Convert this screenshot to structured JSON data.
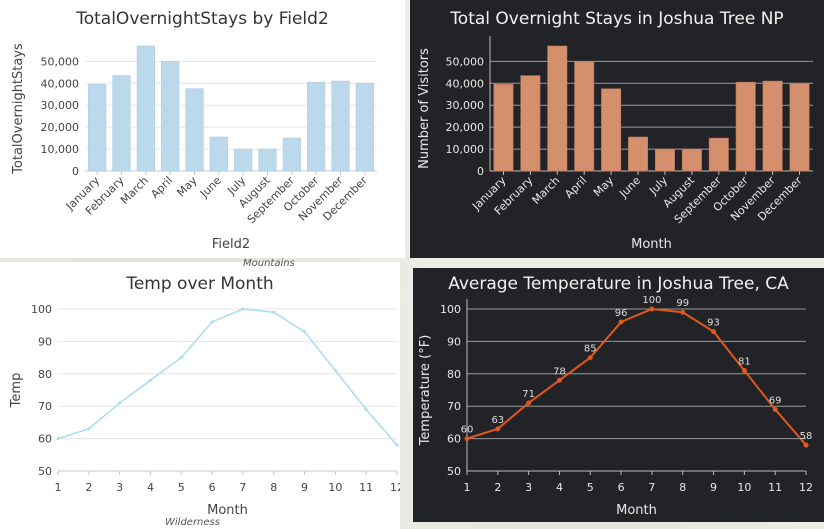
{
  "map_labels": [
    "Mountains",
    "Wilderness"
  ],
  "chart_data": [
    {
      "type": "bar",
      "theme": "light",
      "title": "TotalOvernightStays by Field2",
      "xlabel": "Field2",
      "ylabel": "TotalOvernightStays",
      "categories": [
        "January",
        "February",
        "March",
        "April",
        "May",
        "June",
        "July",
        "August",
        "September",
        "October",
        "November",
        "December"
      ],
      "values": [
        39500,
        43500,
        57000,
        50000,
        37500,
        15500,
        10000,
        10000,
        15000,
        40500,
        41000,
        40000
      ],
      "ylim": [
        0,
        57000
      ],
      "yticks": [
        0,
        10000,
        20000,
        30000,
        40000,
        50000
      ],
      "ytick_labels": [
        "0",
        "10,000",
        "20,000",
        "30,000",
        "40,000",
        "50,000"
      ],
      "grid": true,
      "color": "#bcd9ec"
    },
    {
      "type": "bar",
      "theme": "dark",
      "title": "Total Overnight Stays in Joshua Tree NP",
      "xlabel": "Month",
      "ylabel": "Number of Visitors",
      "categories": [
        "January",
        "February",
        "March",
        "April",
        "May",
        "June",
        "July",
        "August",
        "September",
        "October",
        "November",
        "December"
      ],
      "values": [
        39500,
        43500,
        57000,
        50000,
        37500,
        15500,
        10000,
        10000,
        15000,
        40500,
        41000,
        40000
      ],
      "ylim": [
        0,
        57000
      ],
      "yticks": [
        0,
        10000,
        20000,
        30000,
        40000,
        50000
      ],
      "ytick_labels": [
        "0",
        "10,000",
        "20,000",
        "30,000",
        "40,000",
        "50,000"
      ],
      "grid": true,
      "color": "#d4906c"
    },
    {
      "type": "line",
      "theme": "light",
      "title": "Temp over Month",
      "xlabel": "Month",
      "ylabel": "Temp",
      "x": [
        1,
        2,
        3,
        4,
        5,
        6,
        7,
        8,
        9,
        10,
        11,
        12
      ],
      "values": [
        60,
        63,
        71,
        78,
        85,
        96,
        100,
        99,
        93,
        81,
        69,
        58
      ],
      "ylim": [
        50,
        100
      ],
      "yticks": [
        50,
        60,
        70,
        80,
        90,
        100
      ],
      "ytick_labels": [
        "50",
        "60",
        "70",
        "80",
        "90",
        "100"
      ],
      "xtick_labels": [
        "1",
        "2",
        "3",
        "4",
        "5",
        "6",
        "7",
        "8",
        "9",
        "10",
        "11",
        "12"
      ],
      "data_labels": false,
      "grid": true,
      "color": "#a8dcf0"
    },
    {
      "type": "line",
      "theme": "dark",
      "title": "Average Temperature in Joshua Tree, CA",
      "xlabel": "Month",
      "ylabel": "Temperature (°F)",
      "x": [
        1,
        2,
        3,
        4,
        5,
        6,
        7,
        8,
        9,
        10,
        11,
        12
      ],
      "values": [
        60,
        63,
        71,
        78,
        85,
        96,
        100,
        99,
        93,
        81,
        69,
        58
      ],
      "ylim": [
        50,
        100
      ],
      "yticks": [
        50,
        60,
        70,
        80,
        90,
        100
      ],
      "ytick_labels": [
        "50",
        "60",
        "70",
        "80",
        "90",
        "100"
      ],
      "xtick_labels": [
        "1",
        "2",
        "3",
        "4",
        "5",
        "6",
        "7",
        "8",
        "9",
        "10",
        "11",
        "12"
      ],
      "data_labels": true,
      "grid": true,
      "color": "#e0581c"
    }
  ]
}
